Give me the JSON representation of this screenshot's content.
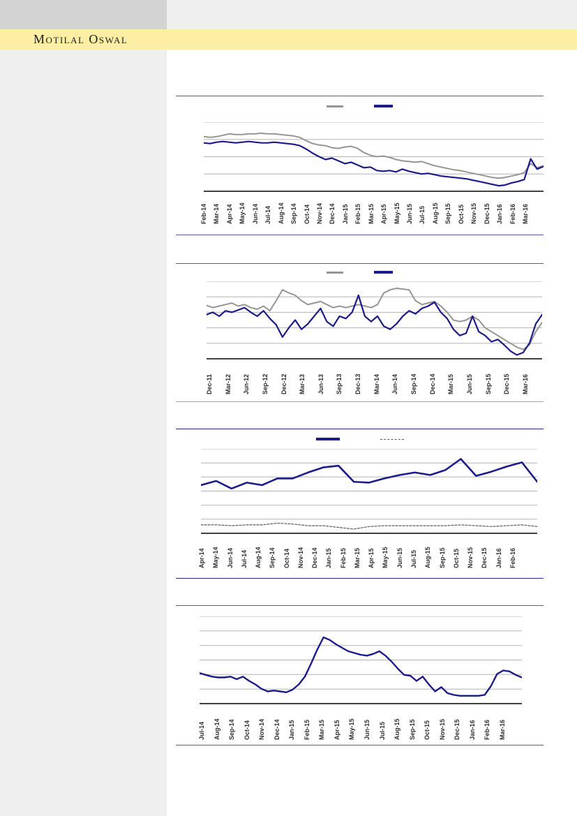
{
  "header": {
    "brand": "Motilal Oswal"
  },
  "colors": {
    "brand_band_yellow": "#fcefa3",
    "header_block_gray": "#d3d3d3",
    "header_strip_gray": "#efefef",
    "sidebar_gray": "#efefef",
    "line_navy": "#1b1b8a",
    "line_gray": "#959595",
    "dashed_dark_gray": "#5a5a5a",
    "gridline_gray": "#b3b3b3",
    "axis_black": "#000000",
    "rule_purple": "#5d54a4",
    "rule_light_purple": "#a39bd2",
    "rule_dark_navy": "#28288e"
  },
  "chart_data": [
    {
      "type": "line",
      "y_axis_labels_visible": false,
      "ylim": [
        0,
        100
      ],
      "gridlines": 4,
      "style": {
        "top_rule": "#5d54a4",
        "bottom_rule": "#5d54a4"
      },
      "legend": [
        {
          "kind": "gray-line",
          "color": "#959595",
          "dash": false
        },
        {
          "kind": "navy-line",
          "color": "#1b1b8a",
          "dash": false
        }
      ],
      "x_labels": [
        "Feb-14",
        "Mar-14",
        "Apr-14",
        "May-14",
        "Jun-14",
        "Jul-14",
        "Aug-14",
        "Sep-14",
        "Oct-14",
        "Nov-14",
        "Dec-14",
        "Jan-15",
        "Feb-15",
        "Mar-15",
        "Apr-15",
        "May-15",
        "Jun-15",
        "Jul-15",
        "Aug-15",
        "Sep-15",
        "Oct-15",
        "Nov-15",
        "Dec-15",
        "Jan-16",
        "Feb-16",
        "Mar-16"
      ],
      "series": [
        {
          "kind": "gray-line",
          "color": "#959595",
          "stroke_width": 2,
          "dash": false,
          "values": [
            79,
            78,
            79,
            81,
            83,
            82,
            82,
            83,
            83,
            84,
            83,
            83,
            82,
            81,
            80,
            78,
            73,
            69,
            67,
            66,
            63,
            62,
            64,
            65,
            62,
            56,
            52,
            50,
            51,
            49,
            46,
            44,
            43,
            42,
            43,
            40,
            37,
            35,
            33,
            31,
            30,
            28,
            26,
            24,
            22,
            20,
            19,
            20,
            22,
            24,
            27,
            40,
            34,
            37
          ]
        },
        {
          "kind": "navy-line",
          "color": "#1b1b8a",
          "stroke_width": 2.2,
          "dash": false,
          "values": [
            70,
            69,
            71,
            72,
            71,
            70,
            71,
            72,
            71,
            70,
            70,
            71,
            70,
            69,
            68,
            66,
            61,
            55,
            50,
            46,
            48,
            44,
            40,
            42,
            38,
            34,
            35,
            30,
            29,
            30,
            28,
            32,
            29,
            27,
            25,
            26,
            24,
            22,
            21,
            20,
            19,
            18,
            16,
            14,
            12,
            10,
            8,
            9,
            12,
            14,
            17,
            47,
            32,
            36
          ]
        }
      ]
    },
    {
      "type": "line",
      "y_axis_labels_visible": false,
      "ylim": [
        0,
        100
      ],
      "gridlines": 5,
      "style": {
        "top_rule": "#5d54a4",
        "bottom_rule": "#a39bd2"
      },
      "legend": [
        {
          "kind": "gray-line",
          "color": "#959595",
          "dash": false
        },
        {
          "kind": "navy-line",
          "color": "#1b1b8a",
          "dash": false
        }
      ],
      "x_labels": [
        "Dec-11",
        "Mar-12",
        "Jun-12",
        "Sep-12",
        "Dec-12",
        "Mar-13",
        "Jun-13",
        "Sep-13",
        "Dec-13",
        "Mar-14",
        "Jun-14",
        "Sep-14",
        "Dec-14",
        "Mar-15",
        "Jun-15",
        "Sep-15",
        "Dec-15",
        "Mar-16"
      ],
      "series": [
        {
          "kind": "gray-line",
          "color": "#959595",
          "stroke_width": 2,
          "dash": false,
          "values": [
            69,
            66,
            68,
            70,
            72,
            68,
            70,
            66,
            64,
            68,
            62,
            75,
            89,
            85,
            82,
            75,
            70,
            72,
            74,
            70,
            66,
            68,
            66,
            68,
            70,
            68,
            66,
            70,
            85,
            89,
            91,
            90,
            89,
            75,
            70,
            72,
            74,
            68,
            60,
            50,
            48,
            50,
            55,
            50,
            40,
            35,
            30,
            25,
            20,
            15,
            12,
            18,
            35,
            47
          ]
        },
        {
          "kind": "navy-line",
          "color": "#1b1b8a",
          "stroke_width": 2.2,
          "dash": false,
          "values": [
            57,
            60,
            55,
            62,
            60,
            63,
            66,
            60,
            55,
            62,
            52,
            44,
            28,
            40,
            50,
            38,
            45,
            55,
            65,
            48,
            42,
            55,
            52,
            60,
            82,
            55,
            48,
            55,
            42,
            38,
            45,
            55,
            62,
            58,
            65,
            68,
            73,
            60,
            52,
            38,
            30,
            33,
            55,
            35,
            30,
            22,
            25,
            18,
            10,
            5,
            8,
            20,
            45,
            57
          ]
        }
      ]
    },
    {
      "type": "line",
      "y_axis_labels_visible": false,
      "ylim": [
        0,
        100
      ],
      "gridlines": 6,
      "style": {
        "top_rule": "#28288e",
        "bottom_rule": "#28288e"
      },
      "legend": [
        {
          "kind": "navy-line",
          "color": "#1b1b8a",
          "dash": false
        },
        {
          "kind": "dashed-line",
          "color": "#5a5a5a",
          "dash": true
        }
      ],
      "x_labels": [
        "Apr-14",
        "May-14",
        "Jun-14",
        "Jul-14",
        "Aug-14",
        "Sep-14",
        "Oct-14",
        "Nov-14",
        "Dec-14",
        "Jan-15",
        "Feb-15",
        "Mar-15",
        "Apr-15",
        "May-15",
        "Jun-15",
        "Jul-15",
        "Aug-15",
        "Sep-15",
        "Oct-15",
        "Nov-15",
        "Dec-15",
        "Jan-16",
        "Feb-16"
      ],
      "series": [
        {
          "kind": "navy-line",
          "color": "#1b1b8a",
          "stroke_width": 2.6,
          "dash": false,
          "values": [
            57,
            62,
            53,
            60,
            57,
            65,
            65,
            72,
            78,
            80,
            61,
            60,
            65,
            69,
            72,
            69,
            75,
            88,
            68,
            73,
            79,
            84,
            61
          ]
        },
        {
          "kind": "dashed-line",
          "color": "#5a5a5a",
          "stroke_width": 1.2,
          "dash": true,
          "values": [
            10,
            10,
            9,
            10,
            10,
            12,
            11,
            9,
            9,
            7,
            5,
            8,
            9,
            9,
            9,
            9,
            9,
            10,
            9,
            8,
            9,
            10,
            8
          ]
        }
      ]
    },
    {
      "type": "line",
      "y_axis_labels_visible": false,
      "ylim": [
        0,
        100
      ],
      "gridlines": 6,
      "style": {
        "top_rule": "#5d54a4",
        "bottom_rule": "#5d54a4"
      },
      "legend": [],
      "x_labels": [
        "Jul-14",
        "Aug-14",
        "Sep-14",
        "Oct-14",
        "Nov-14",
        "Dec-14",
        "Jan-15",
        "Feb-15",
        "Mar-15",
        "Apr-15",
        "May-15",
        "Jun-15",
        "Jul-15",
        "Aug-15",
        "Sep-15",
        "Oct-15",
        "Nov-15",
        "Dec-15",
        "Jan-16",
        "Feb-16",
        "Mar-16"
      ],
      "series": [
        {
          "kind": "navy-line",
          "color": "#1b1b8a",
          "stroke_width": 2.4,
          "dash": false,
          "values": [
            35,
            33,
            31,
            30,
            30,
            31,
            28,
            31,
            26,
            22,
            17,
            14,
            15,
            14,
            13,
            16,
            22,
            31,
            46,
            62,
            76,
            73,
            68,
            64,
            60,
            58,
            56,
            55,
            57,
            60,
            55,
            48,
            40,
            33,
            32,
            26,
            31,
            22,
            14,
            19,
            12,
            10,
            9,
            9,
            9,
            9,
            10,
            20,
            34,
            38,
            37,
            33,
            30
          ]
        }
      ]
    }
  ]
}
